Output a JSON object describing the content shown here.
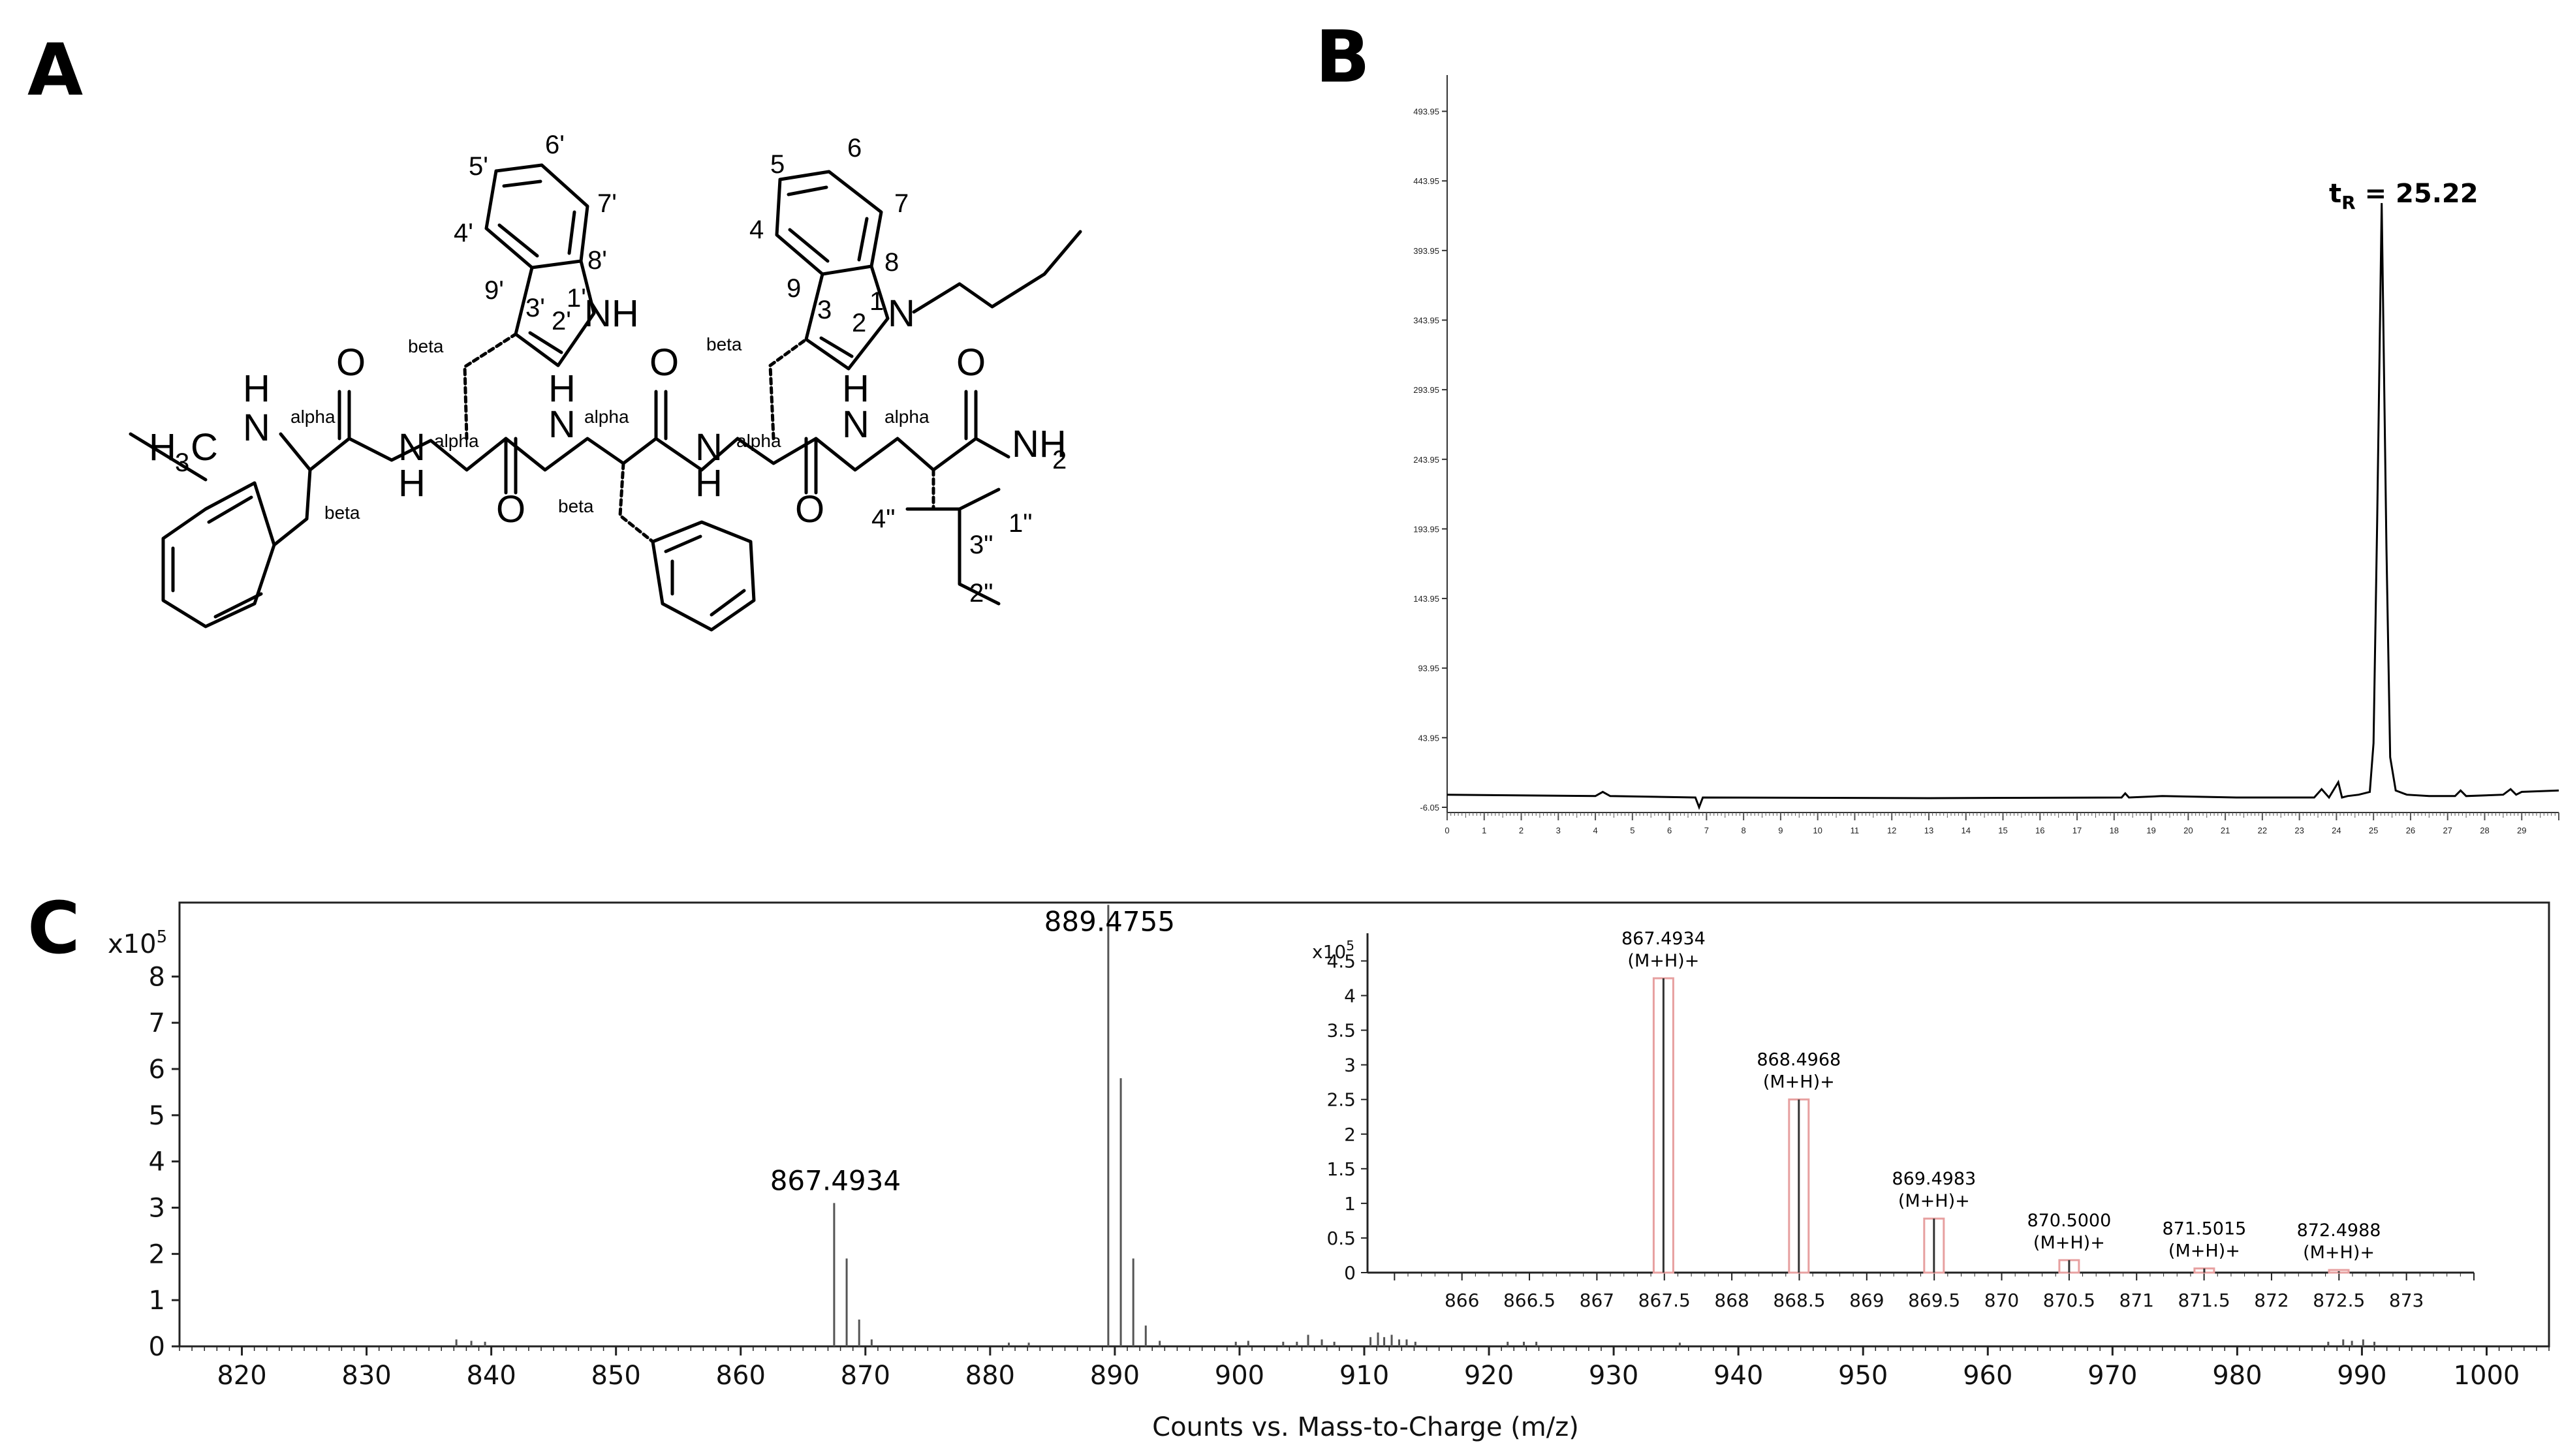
{
  "panels": {
    "a": "A",
    "b": "B",
    "c": "C"
  },
  "structure": {
    "ring_labels_left_indole": [
      "4'",
      "5'",
      "6'",
      "7'",
      "8'",
      "9'",
      "3'",
      "2'",
      "1'"
    ],
    "ring_labels_right_indole": [
      "4",
      "5",
      "6",
      "7",
      "8",
      "9",
      "3",
      "2",
      "1"
    ],
    "leucine_labels": [
      "4\"",
      "3\"",
      "1\"",
      "2\""
    ],
    "alpha_label": "alpha",
    "beta_label": "beta",
    "heteroatoms": {
      "nh": "NH",
      "n": "N",
      "h": "H",
      "o": "O",
      "nh2_main": "NH",
      "nh2_sub": "2",
      "h3c_main": "H",
      "h3c_sub": "3",
      "h3c_c": "C"
    }
  },
  "chart_data": [
    {
      "type": "line",
      "panel": "B",
      "annotation": {
        "main": "t",
        "sub": "R",
        "rest": " = 25.22"
      },
      "yticks": [
        "493.95",
        "443.95",
        "393.95",
        "343.95",
        "293.95",
        "243.95",
        "193.95",
        "143.95",
        "93.95",
        "43.95",
        "-6.05"
      ],
      "ylim": [
        -6.05,
        520
      ],
      "xlim": [
        0,
        30
      ],
      "xticks": [
        "0",
        "1",
        "2",
        "3",
        "4",
        "5",
        "6",
        "7",
        "8",
        "9",
        "10",
        "11",
        "12",
        "13",
        "14",
        "15",
        "16",
        "17",
        "18",
        "19",
        "20",
        "21",
        "22",
        "23",
        "24",
        "25",
        "26",
        "27",
        "28",
        "29"
      ],
      "x": [
        0,
        4.0,
        4.2,
        4.4,
        6.7,
        6.8,
        6.9,
        13,
        18.2,
        18.3,
        18.4,
        19.3,
        21.3,
        23.4,
        23.6,
        23.8,
        24.05,
        24.15,
        24.3,
        24.6,
        24.9,
        25.0,
        25.1,
        25.22,
        25.35,
        25.45,
        25.6,
        25.9,
        26.5,
        27.2,
        27.35,
        27.5,
        28.5,
        28.7,
        28.85,
        29,
        30
      ],
      "y": [
        3,
        2,
        5,
        2,
        1,
        -6,
        1,
        0.5,
        1,
        4,
        1,
        2,
        1,
        1,
        7,
        1,
        12,
        1,
        2,
        3,
        5,
        40,
        200,
        428,
        180,
        30,
        6,
        3,
        2,
        2,
        6,
        2,
        3,
        7,
        3,
        5,
        6
      ]
    },
    {
      "type": "bar",
      "panel": "C",
      "yunit": "x10",
      "yunit_exp": "5",
      "xlabel": "Counts vs. Mass-to-Charge (m/z)",
      "xlim": [
        815,
        1005
      ],
      "ylim": [
        0,
        9.6
      ],
      "xticks": [
        "820",
        "830",
        "840",
        "850",
        "860",
        "870",
        "880",
        "890",
        "900",
        "910",
        "920",
        "930",
        "940",
        "950",
        "960",
        "970",
        "980",
        "990",
        "1000"
      ],
      "yticks": [
        "0",
        "1",
        "2",
        "3",
        "4",
        "5",
        "6",
        "7",
        "8"
      ],
      "peaks_mz": [
        837.2,
        838.4,
        839.5,
        867.4934,
        868.4968,
        869.4983,
        870.5,
        881.5,
        883.1,
        889.4755,
        890.48,
        891.48,
        892.48,
        893.6,
        899.7,
        900.7,
        903.5,
        904.6,
        905.5,
        906.6,
        907.6,
        910.5,
        911.1,
        911.6,
        912.2,
        912.8,
        913.4,
        914.1,
        921.5,
        922.8,
        923.8,
        935.3,
        987.3,
        988.5,
        989.2,
        990.1,
        991.0
      ],
      "peaks_int": [
        0.15,
        0.12,
        0.1,
        3.1,
        1.9,
        0.58,
        0.15,
        0.08,
        0.08,
        9.55,
        5.8,
        1.9,
        0.45,
        0.12,
        0.1,
        0.12,
        0.1,
        0.1,
        0.25,
        0.15,
        0.1,
        0.2,
        0.3,
        0.2,
        0.25,
        0.15,
        0.15,
        0.1,
        0.1,
        0.1,
        0.1,
        0.08,
        0.1,
        0.15,
        0.12,
        0.15,
        0.1
      ],
      "labels": [
        {
          "mz": 867.4934,
          "text": "867.4934"
        },
        {
          "mz": 889.4755,
          "text": "889.4755"
        }
      ]
    },
    {
      "type": "bar",
      "panel": "C-inset",
      "yunit": "x10",
      "yunit_exp": "5",
      "xlim": [
        865.3,
        873.5
      ],
      "ylim": [
        0,
        4.9
      ],
      "xticks": [
        "866",
        "866.5",
        "867",
        "867.5",
        "868",
        "868.5",
        "869",
        "869.5",
        "870",
        "870.5",
        "871",
        "871.5",
        "872",
        "872.5",
        "873"
      ],
      "yticks": [
        "0",
        "0.5",
        "1",
        "1.5",
        "2",
        "2.5",
        "3",
        "3.5",
        "4",
        "4.5"
      ],
      "peaks": [
        {
          "mz": 867.4934,
          "intensity": 4.25,
          "label": "867.4934",
          "ion": "(M+H)+"
        },
        {
          "mz": 868.4968,
          "intensity": 2.5,
          "label": "868.4968",
          "ion": "(M+H)+"
        },
        {
          "mz": 869.4983,
          "intensity": 0.78,
          "label": "869.4983",
          "ion": "(M+H)+"
        },
        {
          "mz": 870.5,
          "intensity": 0.18,
          "label": "870.5000",
          "ion": "(M+H)+"
        },
        {
          "mz": 871.5015,
          "intensity": 0.06,
          "label": "871.5015",
          "ion": "(M+H)+"
        },
        {
          "mz": 872.4988,
          "intensity": 0.02,
          "label": "872.4988",
          "ion": "(M+H)+"
        }
      ]
    }
  ]
}
